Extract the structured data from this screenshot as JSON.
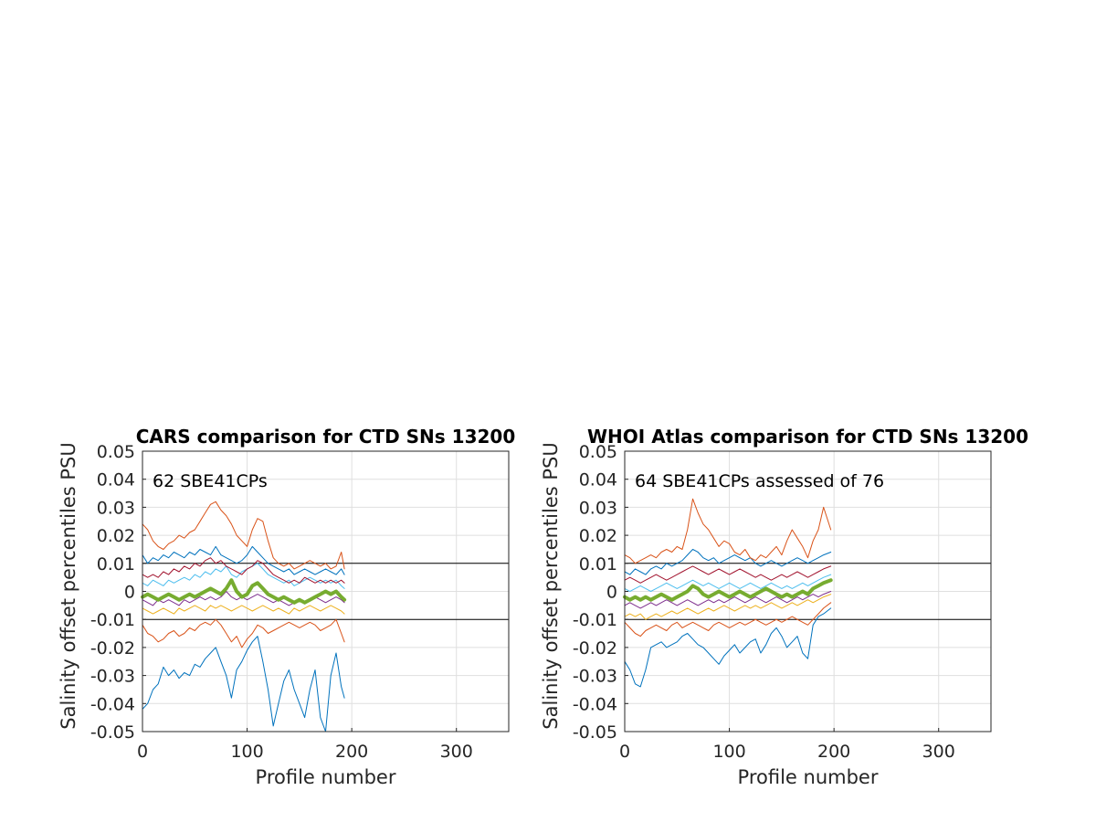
{
  "colors": {
    "blue": "#0072BD",
    "orange": "#D95319",
    "yellow": "#EDB120",
    "purple": "#7E2F8E",
    "cyan": "#4DBEEE",
    "maroon": "#A2142F",
    "median_green": "#77AC30",
    "grid": "#DFDFDF",
    "axis": "#262626"
  },
  "chart_data": [
    {
      "type": "line",
      "title": "CARS comparison for CTD SNs 13200",
      "xlabel": "Profile number",
      "ylabel": "Salinity offset percentiles PSU",
      "annotation": "62 SBE41CPs",
      "xlim": [
        0,
        350
      ],
      "ylim": [
        -0.05,
        0.05
      ],
      "xticks": [
        "0",
        "100",
        "200",
        "300"
      ],
      "yticks": [
        "-0.05",
        "-0.04",
        "-0.03",
        "-0.02",
        "-0.01",
        "0",
        "0.01",
        "0.02",
        "0.03",
        "0.04",
        "0.05"
      ],
      "grid": true,
      "reference_lines": [
        0.01,
        -0.01
      ],
      "x": [
        0,
        5,
        10,
        15,
        20,
        25,
        30,
        35,
        40,
        45,
        50,
        55,
        60,
        65,
        70,
        75,
        80,
        85,
        90,
        95,
        100,
        105,
        110,
        115,
        120,
        125,
        130,
        135,
        140,
        145,
        150,
        155,
        160,
        165,
        170,
        175,
        180,
        185,
        190,
        193
      ],
      "series": [
        {
          "color": "blue",
          "width": 1.0,
          "values": [
            -0.042,
            -0.04,
            -0.035,
            -0.033,
            -0.027,
            -0.03,
            -0.028,
            -0.031,
            -0.029,
            -0.03,
            -0.026,
            -0.027,
            -0.024,
            -0.022,
            -0.02,
            -0.025,
            -0.03,
            -0.038,
            -0.028,
            -0.025,
            -0.021,
            -0.018,
            -0.016,
            -0.025,
            -0.035,
            -0.048,
            -0.04,
            -0.032,
            -0.028,
            -0.035,
            -0.04,
            -0.045,
            -0.035,
            -0.028,
            -0.045,
            -0.05,
            -0.03,
            -0.022,
            -0.034,
            -0.038
          ]
        },
        {
          "color": "orange",
          "width": 1.0,
          "values": [
            -0.012,
            -0.015,
            -0.016,
            -0.018,
            -0.017,
            -0.015,
            -0.014,
            -0.016,
            -0.015,
            -0.013,
            -0.014,
            -0.012,
            -0.011,
            -0.012,
            -0.01,
            -0.012,
            -0.015,
            -0.018,
            -0.016,
            -0.02,
            -0.017,
            -0.015,
            -0.012,
            -0.013,
            -0.015,
            -0.014,
            -0.013,
            -0.012,
            -0.011,
            -0.012,
            -0.013,
            -0.012,
            -0.011,
            -0.012,
            -0.014,
            -0.013,
            -0.012,
            -0.01,
            -0.015,
            -0.018
          ]
        },
        {
          "color": "yellow",
          "width": 1.0,
          "values": [
            -0.006,
            -0.007,
            -0.008,
            -0.007,
            -0.006,
            -0.007,
            -0.008,
            -0.006,
            -0.007,
            -0.006,
            -0.005,
            -0.006,
            -0.007,
            -0.005,
            -0.006,
            -0.005,
            -0.006,
            -0.007,
            -0.006,
            -0.005,
            -0.006,
            -0.007,
            -0.006,
            -0.005,
            -0.006,
            -0.007,
            -0.006,
            -0.007,
            -0.008,
            -0.006,
            -0.007,
            -0.006,
            -0.005,
            -0.006,
            -0.007,
            -0.006,
            -0.005,
            -0.006,
            -0.007,
            -0.008
          ]
        },
        {
          "color": "purple",
          "width": 1.0,
          "values": [
            -0.003,
            -0.004,
            -0.005,
            -0.003,
            -0.004,
            -0.003,
            -0.004,
            -0.005,
            -0.003,
            -0.004,
            -0.003,
            -0.002,
            -0.003,
            -0.002,
            -0.003,
            -0.002,
            0.0,
            -0.002,
            -0.003,
            -0.002,
            -0.003,
            -0.002,
            -0.001,
            -0.002,
            -0.003,
            -0.004,
            -0.003,
            -0.004,
            -0.005,
            -0.004,
            -0.003,
            -0.004,
            -0.003,
            -0.002,
            -0.003,
            -0.004,
            -0.003,
            -0.002,
            -0.003,
            -0.004
          ]
        },
        {
          "color": "cyan",
          "width": 1.0,
          "values": [
            0.003,
            0.002,
            0.004,
            0.003,
            0.002,
            0.004,
            0.003,
            0.004,
            0.005,
            0.004,
            0.006,
            0.005,
            0.007,
            0.006,
            0.008,
            0.007,
            0.009,
            0.006,
            0.005,
            0.007,
            0.008,
            0.009,
            0.01,
            0.008,
            0.006,
            0.005,
            0.004,
            0.003,
            0.004,
            0.002,
            0.003,
            0.004,
            0.005,
            0.004,
            0.003,
            0.004,
            0.003,
            0.004,
            0.002,
            0.001
          ]
        },
        {
          "color": "maroon",
          "width": 1.0,
          "values": [
            0.006,
            0.005,
            0.006,
            0.005,
            0.007,
            0.006,
            0.008,
            0.007,
            0.009,
            0.008,
            0.01,
            0.009,
            0.011,
            0.012,
            0.01,
            0.011,
            0.009,
            0.008,
            0.007,
            0.006,
            0.008,
            0.009,
            0.011,
            0.01,
            0.008,
            0.006,
            0.005,
            0.004,
            0.003,
            0.004,
            0.003,
            0.005,
            0.004,
            0.003,
            0.004,
            0.003,
            0.004,
            0.003,
            0.004,
            0.003
          ]
        },
        {
          "color": "blue",
          "width": 1.0,
          "values": [
            0.013,
            0.01,
            0.012,
            0.011,
            0.013,
            0.012,
            0.014,
            0.013,
            0.012,
            0.014,
            0.013,
            0.015,
            0.014,
            0.013,
            0.016,
            0.013,
            0.012,
            0.011,
            0.01,
            0.011,
            0.013,
            0.016,
            0.014,
            0.012,
            0.01,
            0.009,
            0.008,
            0.007,
            0.008,
            0.006,
            0.007,
            0.008,
            0.007,
            0.006,
            0.007,
            0.008,
            0.007,
            0.006,
            0.008,
            0.006
          ]
        },
        {
          "color": "orange",
          "width": 1.0,
          "values": [
            0.024,
            0.022,
            0.018,
            0.016,
            0.015,
            0.017,
            0.018,
            0.02,
            0.019,
            0.021,
            0.022,
            0.025,
            0.028,
            0.031,
            0.032,
            0.029,
            0.027,
            0.024,
            0.02,
            0.018,
            0.016,
            0.022,
            0.026,
            0.025,
            0.018,
            0.012,
            0.01,
            0.009,
            0.01,
            0.008,
            0.009,
            0.01,
            0.011,
            0.01,
            0.009,
            0.01,
            0.008,
            0.009,
            0.014,
            0.008
          ]
        },
        {
          "color": "median_green",
          "width": 4.0,
          "values": [
            -0.002,
            -0.001,
            -0.002,
            -0.003,
            -0.002,
            -0.001,
            -0.002,
            -0.003,
            -0.002,
            -0.001,
            -0.002,
            -0.001,
            0.0,
            0.001,
            0.0,
            -0.001,
            0.001,
            0.004,
            0.0,
            -0.002,
            -0.001,
            0.002,
            0.003,
            0.001,
            -0.001,
            -0.002,
            -0.003,
            -0.002,
            -0.003,
            -0.004,
            -0.003,
            -0.004,
            -0.003,
            -0.002,
            -0.001,
            0.0,
            -0.001,
            0.0,
            -0.002,
            -0.003
          ]
        }
      ]
    },
    {
      "type": "line",
      "title": "WHOI Atlas comparison for CTD SNs 13200",
      "xlabel": "Profile number",
      "ylabel": "Salinity offset percentiles PSU",
      "annotation": "64 SBE41CPs assessed of 76",
      "xlim": [
        0,
        350
      ],
      "ylim": [
        -0.05,
        0.05
      ],
      "xticks": [
        "0",
        "100",
        "200",
        "300"
      ],
      "yticks": [
        "-0.05",
        "-0.04",
        "-0.03",
        "-0.02",
        "-0.01",
        "0",
        "0.01",
        "0.02",
        "0.03",
        "0.04",
        "0.05"
      ],
      "grid": true,
      "reference_lines": [
        0.01,
        -0.01
      ],
      "x": [
        0,
        5,
        10,
        15,
        20,
        25,
        30,
        35,
        40,
        45,
        50,
        55,
        60,
        65,
        70,
        75,
        80,
        85,
        90,
        95,
        100,
        105,
        110,
        115,
        120,
        125,
        130,
        135,
        140,
        145,
        150,
        155,
        160,
        165,
        170,
        175,
        180,
        185,
        190,
        197
      ],
      "series": [
        {
          "color": "blue",
          "width": 1.0,
          "values": [
            -0.025,
            -0.028,
            -0.033,
            -0.034,
            -0.028,
            -0.02,
            -0.019,
            -0.018,
            -0.02,
            -0.019,
            -0.018,
            -0.016,
            -0.015,
            -0.017,
            -0.019,
            -0.02,
            -0.022,
            -0.024,
            -0.026,
            -0.023,
            -0.021,
            -0.019,
            -0.022,
            -0.02,
            -0.018,
            -0.017,
            -0.022,
            -0.019,
            -0.015,
            -0.013,
            -0.016,
            -0.02,
            -0.018,
            -0.016,
            -0.022,
            -0.024,
            -0.012,
            -0.009,
            -0.008,
            -0.006
          ]
        },
        {
          "color": "orange",
          "width": 1.0,
          "values": [
            -0.011,
            -0.013,
            -0.015,
            -0.016,
            -0.014,
            -0.013,
            -0.012,
            -0.013,
            -0.014,
            -0.012,
            -0.011,
            -0.013,
            -0.012,
            -0.011,
            -0.012,
            -0.013,
            -0.014,
            -0.012,
            -0.011,
            -0.012,
            -0.013,
            -0.012,
            -0.011,
            -0.012,
            -0.011,
            -0.01,
            -0.011,
            -0.012,
            -0.011,
            -0.01,
            -0.011,
            -0.01,
            -0.009,
            -0.01,
            -0.011,
            -0.012,
            -0.01,
            -0.008,
            -0.006,
            -0.004
          ]
        },
        {
          "color": "yellow",
          "width": 1.0,
          "values": [
            -0.009,
            -0.008,
            -0.009,
            -0.008,
            -0.01,
            -0.009,
            -0.008,
            -0.009,
            -0.008,
            -0.007,
            -0.008,
            -0.007,
            -0.006,
            -0.007,
            -0.008,
            -0.007,
            -0.006,
            -0.007,
            -0.006,
            -0.005,
            -0.006,
            -0.007,
            -0.006,
            -0.005,
            -0.006,
            -0.005,
            -0.006,
            -0.005,
            -0.004,
            -0.005,
            -0.006,
            -0.005,
            -0.004,
            -0.005,
            -0.004,
            -0.003,
            -0.004,
            -0.003,
            -0.002,
            -0.001
          ]
        },
        {
          "color": "purple",
          "width": 1.0,
          "values": [
            -0.005,
            -0.004,
            -0.005,
            -0.006,
            -0.005,
            -0.004,
            -0.005,
            -0.004,
            -0.003,
            -0.004,
            -0.005,
            -0.004,
            -0.003,
            -0.004,
            -0.005,
            -0.004,
            -0.003,
            -0.004,
            -0.003,
            -0.004,
            -0.003,
            -0.002,
            -0.003,
            -0.004,
            -0.003,
            -0.002,
            -0.003,
            -0.004,
            -0.003,
            -0.002,
            -0.003,
            -0.004,
            -0.003,
            -0.002,
            -0.003,
            -0.002,
            -0.001,
            -0.002,
            -0.001,
            0.0
          ]
        },
        {
          "color": "cyan",
          "width": 1.0,
          "values": [
            0.001,
            0.0,
            0.001,
            0.002,
            0.001,
            0.0,
            0.001,
            0.002,
            0.003,
            0.002,
            0.001,
            0.002,
            0.003,
            0.004,
            0.003,
            0.002,
            0.003,
            0.002,
            0.001,
            0.002,
            0.003,
            0.002,
            0.001,
            0.002,
            0.003,
            0.002,
            0.001,
            0.002,
            0.003,
            0.002,
            0.001,
            0.002,
            0.001,
            0.002,
            0.003,
            0.002,
            0.003,
            0.004,
            0.005,
            0.006
          ]
        },
        {
          "color": "maroon",
          "width": 1.0,
          "values": [
            0.004,
            0.005,
            0.004,
            0.003,
            0.004,
            0.005,
            0.006,
            0.005,
            0.004,
            0.005,
            0.006,
            0.007,
            0.008,
            0.009,
            0.008,
            0.007,
            0.006,
            0.007,
            0.008,
            0.007,
            0.006,
            0.007,
            0.008,
            0.007,
            0.006,
            0.005,
            0.006,
            0.005,
            0.004,
            0.005,
            0.006,
            0.005,
            0.006,
            0.007,
            0.006,
            0.005,
            0.006,
            0.007,
            0.008,
            0.009
          ]
        },
        {
          "color": "blue",
          "width": 1.0,
          "values": [
            0.007,
            0.006,
            0.008,
            0.007,
            0.006,
            0.008,
            0.009,
            0.008,
            0.01,
            0.009,
            0.01,
            0.011,
            0.013,
            0.015,
            0.014,
            0.012,
            0.011,
            0.012,
            0.01,
            0.011,
            0.012,
            0.013,
            0.012,
            0.011,
            0.012,
            0.01,
            0.009,
            0.01,
            0.011,
            0.01,
            0.009,
            0.01,
            0.011,
            0.012,
            0.011,
            0.01,
            0.011,
            0.012,
            0.013,
            0.014
          ]
        },
        {
          "color": "orange",
          "width": 1.0,
          "values": [
            0.013,
            0.012,
            0.01,
            0.011,
            0.012,
            0.013,
            0.012,
            0.014,
            0.015,
            0.014,
            0.016,
            0.015,
            0.022,
            0.033,
            0.028,
            0.024,
            0.022,
            0.019,
            0.016,
            0.018,
            0.017,
            0.014,
            0.013,
            0.015,
            0.012,
            0.011,
            0.013,
            0.012,
            0.014,
            0.016,
            0.013,
            0.018,
            0.022,
            0.019,
            0.016,
            0.012,
            0.018,
            0.022,
            0.03,
            0.022
          ]
        },
        {
          "color": "median_green",
          "width": 4.0,
          "values": [
            -0.002,
            -0.003,
            -0.002,
            -0.003,
            -0.002,
            -0.003,
            -0.002,
            -0.001,
            -0.002,
            -0.003,
            -0.002,
            -0.001,
            0.0,
            0.002,
            0.001,
            -0.001,
            -0.002,
            -0.001,
            0.0,
            -0.001,
            -0.002,
            -0.001,
            0.0,
            -0.001,
            -0.002,
            -0.001,
            0.0,
            0.001,
            0.0,
            -0.001,
            -0.002,
            -0.001,
            -0.002,
            -0.001,
            0.0,
            -0.001,
            0.001,
            0.002,
            0.003,
            0.004
          ]
        }
      ]
    }
  ]
}
